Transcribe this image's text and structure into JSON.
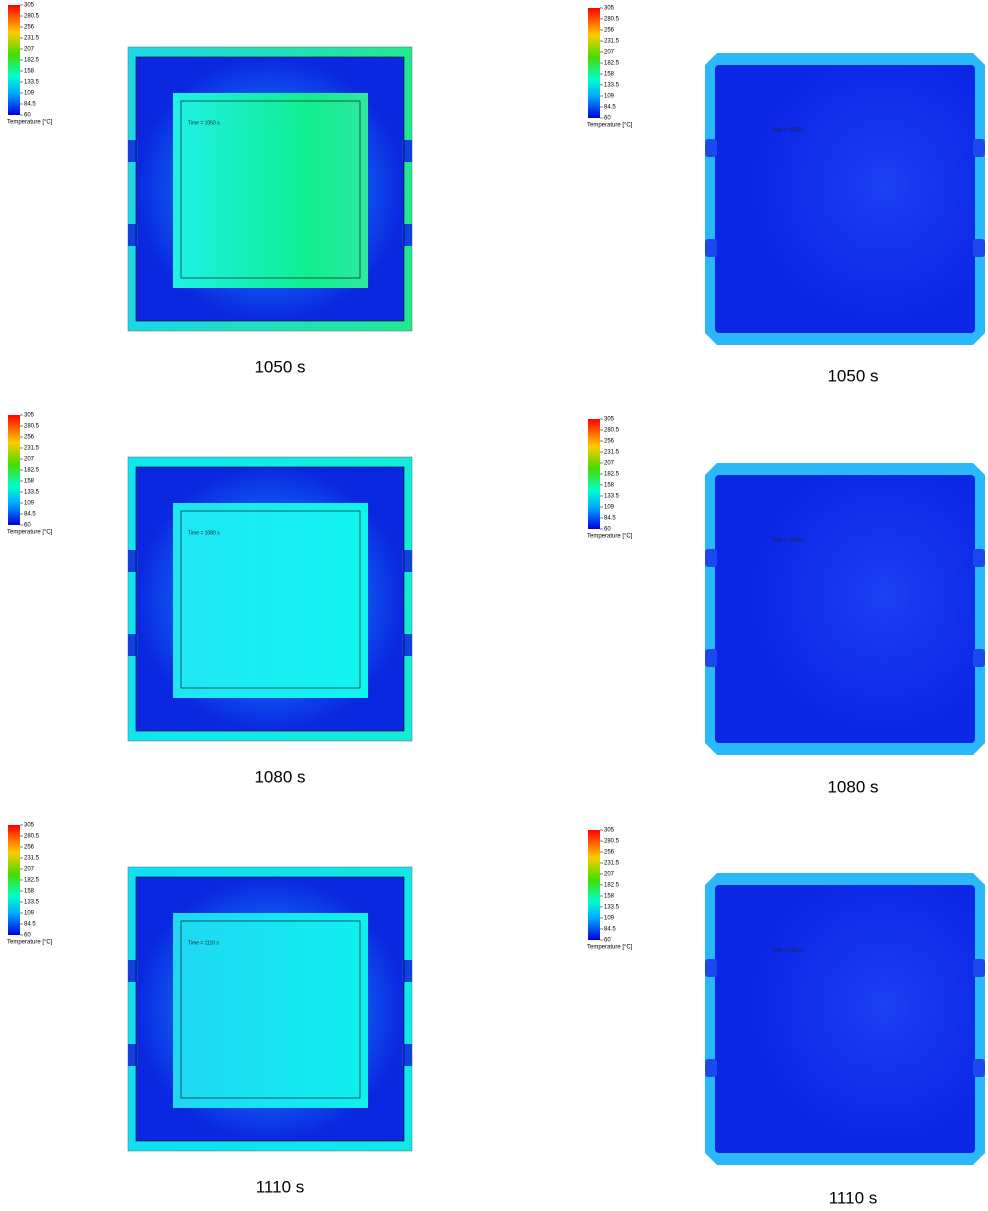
{
  "legend": {
    "ticks": [
      "305",
      "280.5",
      "256",
      "231.5",
      "207",
      "182.5",
      "158",
      "133.5",
      "109",
      "84.5",
      "60"
    ],
    "title": "Temperature [°C]"
  },
  "panels": [
    {
      "time_label": "Time = 1050 s",
      "caption": "1050 s"
    },
    {
      "time_label": "Time = 1050 s",
      "caption": "1050 s"
    },
    {
      "time_label": "Time = 1080 s",
      "caption": "1080 s"
    },
    {
      "time_label": "Time = 1080 s",
      "caption": "1080 s"
    },
    {
      "time_label": "Time = 1110 s",
      "caption": "1110 s"
    },
    {
      "time_label": "Time = 1110 s",
      "caption": "1110 s"
    }
  ]
}
